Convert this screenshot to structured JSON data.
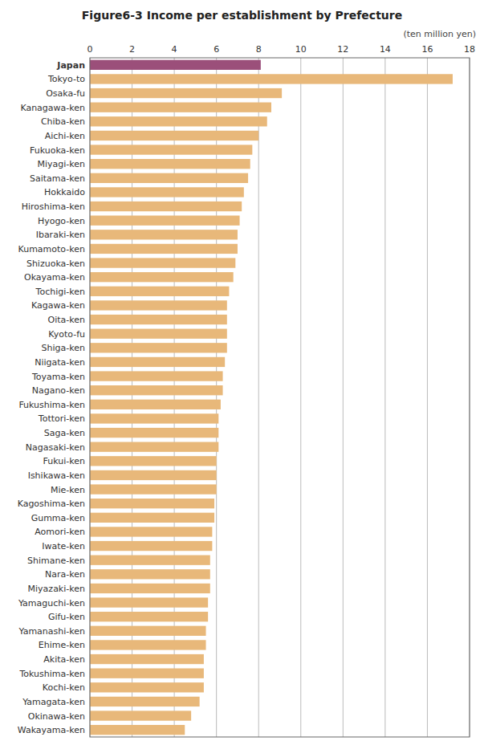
{
  "chart_data": {
    "type": "bar",
    "orientation": "horizontal",
    "title": "Figure6-3  Income per establishment by Prefecture",
    "xlabel": "(ten million yen)",
    "categories": [
      "Japan",
      "Tokyo-to",
      "Osaka-fu",
      "Kanagawa-ken",
      "Chiba-ken",
      "Aichi-ken",
      "Fukuoka-ken",
      "Miyagi-ken",
      "Saitama-ken",
      "Hokkaido",
      "Hiroshima-ken",
      "Hyogo-ken",
      "Ibaraki-ken",
      "Kumamoto-ken",
      "Shizuoka-ken",
      "Okayama-ken",
      "Tochigi-ken",
      "Kagawa-ken",
      "Oita-ken",
      "Kyoto-fu",
      "Shiga-ken",
      "Niigata-ken",
      "Toyama-ken",
      "Nagano-ken",
      "Fukushima-ken",
      "Tottori-ken",
      "Saga-ken",
      "Nagasaki-ken",
      "Fukui-ken",
      "Ishikawa-ken",
      "Mie-ken",
      "Kagoshima-ken",
      "Gumma-ken",
      "Aomori-ken",
      "Iwate-ken",
      "Shimane-ken",
      "Nara-ken",
      "Miyazaki-ken",
      "Yamaguchi-ken",
      "Gifu-ken",
      "Yamanashi-ken",
      "Ehime-ken",
      "Akita-ken",
      "Tokushima-ken",
      "Kochi-ken",
      "Yamagata-ken",
      "Okinawa-ken",
      "Wakayama-ken"
    ],
    "values": [
      8.1,
      17.2,
      9.1,
      8.6,
      8.4,
      8.0,
      7.7,
      7.6,
      7.5,
      7.3,
      7.2,
      7.1,
      7.0,
      7.0,
      6.9,
      6.8,
      6.6,
      6.5,
      6.5,
      6.5,
      6.5,
      6.4,
      6.3,
      6.3,
      6.2,
      6.1,
      6.1,
      6.1,
      6.0,
      6.0,
      6.0,
      5.9,
      5.9,
      5.8,
      5.8,
      5.7,
      5.7,
      5.7,
      5.6,
      5.6,
      5.5,
      5.5,
      5.4,
      5.4,
      5.4,
      5.2,
      4.8,
      4.5
    ],
    "colors": [
      "#9b4f7a",
      "#e8b87a",
      "#e8b87a",
      "#e8b87a",
      "#e8b87a",
      "#e8b87a",
      "#e8b87a",
      "#e8b87a",
      "#e8b87a",
      "#e8b87a",
      "#e8b87a",
      "#e8b87a",
      "#e8b87a",
      "#e8b87a",
      "#e8b87a",
      "#e8b87a",
      "#e8b87a",
      "#e8b87a",
      "#e8b87a",
      "#e8b87a",
      "#e8b87a",
      "#e8b87a",
      "#e8b87a",
      "#e8b87a",
      "#e8b87a",
      "#e8b87a",
      "#e8b87a",
      "#e8b87a",
      "#e8b87a",
      "#e8b87a",
      "#e8b87a",
      "#e8b87a",
      "#e8b87a",
      "#e8b87a",
      "#e8b87a",
      "#e8b87a",
      "#e8b87a",
      "#e8b87a",
      "#e8b87a",
      "#e8b87a",
      "#e8b87a",
      "#e8b87a",
      "#e8b87a",
      "#e8b87a",
      "#e8b87a",
      "#e8b87a",
      "#e8b87a",
      "#e8b87a"
    ],
    "xlim": [
      0,
      18
    ],
    "xticks": [
      0,
      2,
      4,
      6,
      8,
      10,
      12,
      14,
      16,
      18
    ],
    "grid": true
  }
}
